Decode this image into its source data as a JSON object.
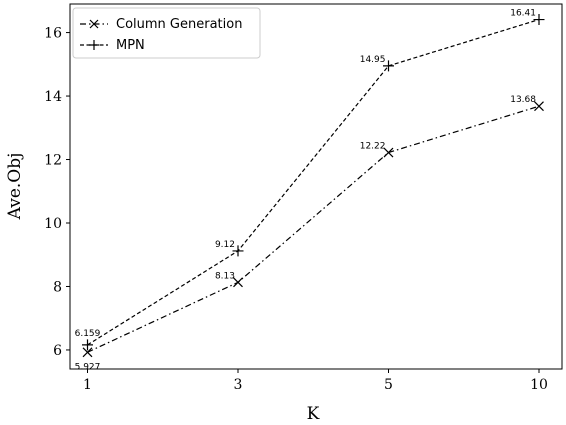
{
  "chart_data": {
    "type": "line",
    "categories": [
      "1",
      "3",
      "5",
      "10"
    ],
    "series": [
      {
        "name": "Column Generation",
        "values": [
          5.927,
          8.13,
          12.22,
          13.68
        ],
        "labels": [
          "5.927",
          "8.13",
          "12.22",
          "13.68"
        ],
        "marker": "x",
        "linestyle": "dashdot",
        "color": "#000000"
      },
      {
        "name": "MPN",
        "values": [
          6.159,
          9.12,
          14.95,
          16.41
        ],
        "labels": [
          "6.159",
          "9.12",
          "14.95",
          "16.41"
        ],
        "marker": "+",
        "linestyle": "dashed",
        "color": "#000000"
      }
    ],
    "xlabel": "K",
    "ylabel": "Ave.Obj",
    "ylim": [
      5.4,
      16.9
    ],
    "yticks": [
      6,
      8,
      10,
      12,
      14,
      16
    ],
    "grid": false,
    "legend": "top-left"
  }
}
